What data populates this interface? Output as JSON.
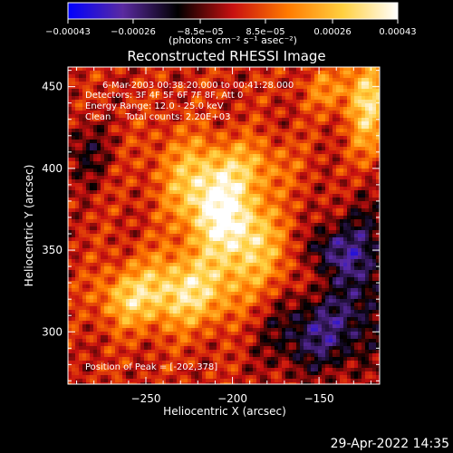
{
  "chart_data": {
    "type": "heatmap",
    "title": "Reconstructed RHESSI Image",
    "xlabel": "Heliocentric X (arcsec)",
    "ylabel": "Heliocentric Y (arcsec)",
    "xlim": [
      -295,
      -115
    ],
    "ylim": [
      268,
      462
    ],
    "x_ticks": [
      -250,
      -200,
      -150
    ],
    "y_ticks": [
      300,
      350,
      400,
      450
    ],
    "x_tick_labels": [
      "−250",
      "−200",
      "−150"
    ],
    "y_tick_labels": [
      "300",
      "350",
      "400",
      "450"
    ],
    "colorbar": {
      "range": [
        -0.00043,
        0.00043
      ],
      "tick_values": [
        -0.00043,
        -0.00026,
        -8.5e-05,
        8.5e-05,
        0.00026,
        0.00043
      ],
      "tick_labels": [
        "−0.00043",
        "−0.00026",
        "−8.5e−05",
        "8.5e−05",
        "0.00026",
        "0.00043"
      ],
      "units": "(photons cm⁻² s⁻¹ asec⁻²)",
      "colors": [
        "#0000ff",
        "#5a2aa0",
        "#000000",
        "#c81010",
        "#ff7a00",
        "#ffd040",
        "#ffffff"
      ]
    },
    "annotations": [
      "6-Mar-2003 00:38:20.000 to 00:41:28.000",
      "Detectors: 3F 4F 5F 6F 7F 8F, Att 0",
      "Energy Range: 12.0 - 25.0 keV",
      "Clean     Total counts: 2.20E+03"
    ],
    "peak_label": "Position of Peak = [-202,378]",
    "peak": [
      -202,
      378
    ],
    "emission_features": [
      {
        "x": -205,
        "y": 372,
        "sigma_x": 16,
        "sigma_y": 30,
        "rotation_deg": 35,
        "amplitude": 0.00043
      },
      {
        "x": -228,
        "y": 325,
        "sigma_x": 22,
        "sigma_y": 16,
        "rotation_deg": 0,
        "amplitude": 0.00032
      },
      {
        "x": -262,
        "y": 320,
        "sigma_x": 12,
        "sigma_y": 12,
        "rotation_deg": 0,
        "amplitude": 0.00018
      },
      {
        "x": -190,
        "y": 402,
        "sigma_x": 18,
        "sigma_y": 12,
        "rotation_deg": 0,
        "amplitude": 0.00016
      },
      {
        "x": -122,
        "y": 440,
        "sigma_x": 8,
        "sigma_y": 22,
        "rotation_deg": 0,
        "amplitude": 0.0003
      },
      {
        "x": -145,
        "y": 448,
        "sigma_x": 10,
        "sigma_y": 10,
        "rotation_deg": 0,
        "amplitude": 0.00014
      },
      {
        "x": -150,
        "y": 300,
        "sigma_x": 22,
        "sigma_y": 18,
        "rotation_deg": 0,
        "amplitude": -0.00026
      },
      {
        "x": -125,
        "y": 345,
        "sigma_x": 12,
        "sigma_y": 25,
        "rotation_deg": 0,
        "amplitude": -0.00022
      },
      {
        "x": -145,
        "y": 350,
        "sigma_x": 10,
        "sigma_y": 10,
        "rotation_deg": 0,
        "amplitude": -0.0002
      },
      {
        "x": -285,
        "y": 410,
        "sigma_x": 10,
        "sigma_y": 14,
        "rotation_deg": 0,
        "amplitude": -0.00014
      }
    ]
  },
  "footer": {
    "timestamp": "29-Apr-2022 14:35"
  }
}
